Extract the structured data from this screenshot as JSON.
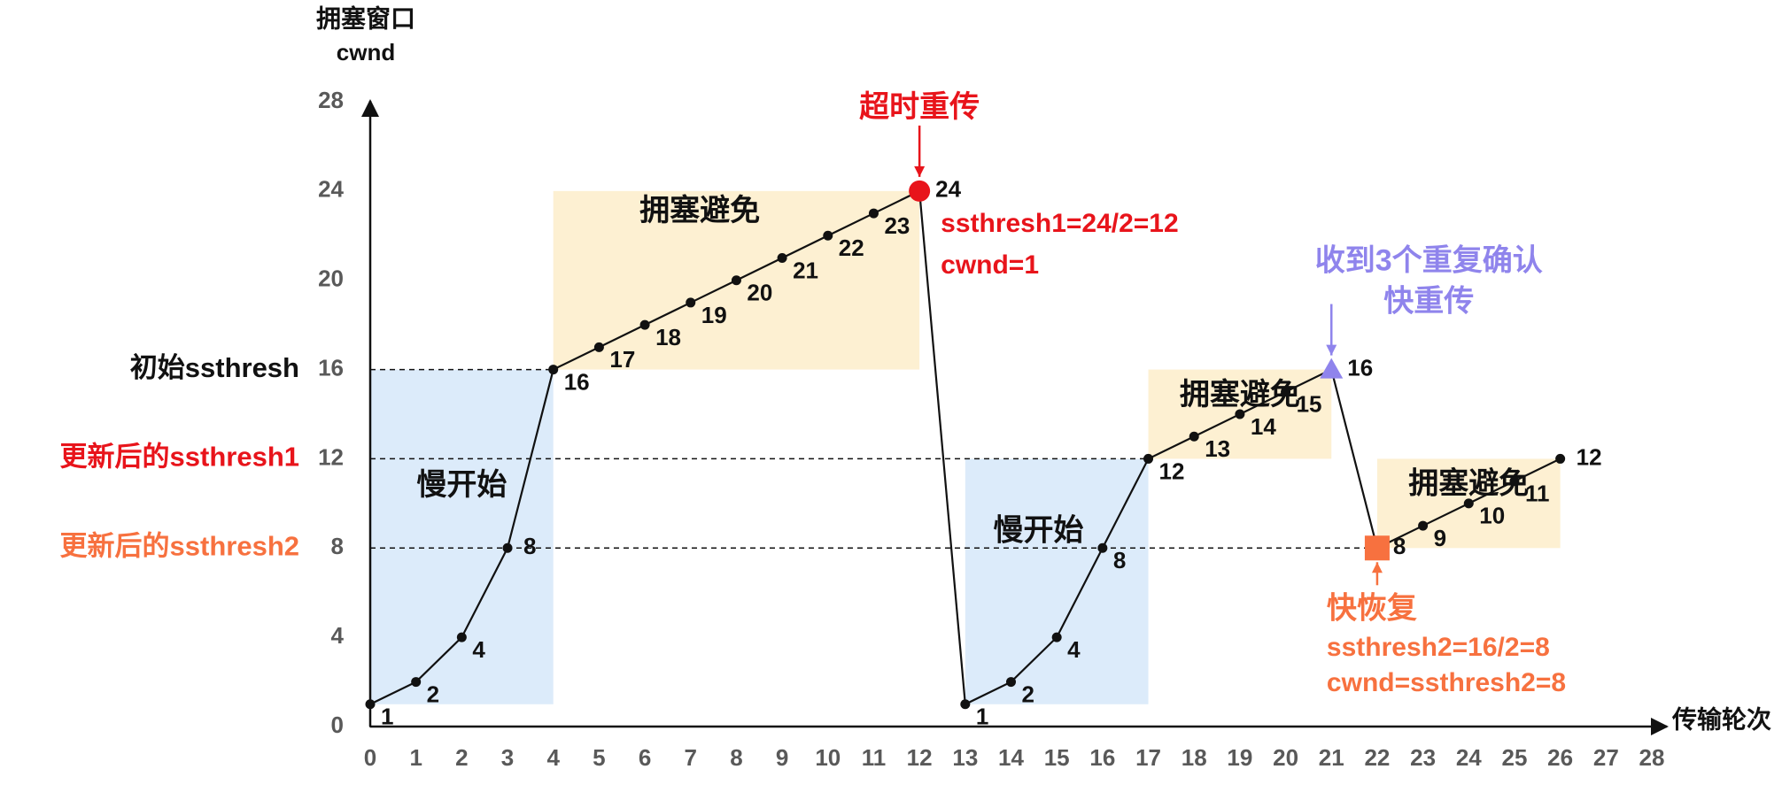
{
  "chart_data": {
    "type": "line",
    "y_label": [
      "拥塞窗口",
      "cwnd"
    ],
    "x_label": "传输轮次",
    "xlim": [
      0,
      28
    ],
    "ylim": [
      0,
      28
    ],
    "xticks": [
      0,
      1,
      2,
      3,
      4,
      5,
      6,
      7,
      8,
      9,
      10,
      11,
      12,
      13,
      14,
      15,
      16,
      17,
      18,
      19,
      20,
      21,
      22,
      23,
      24,
      25,
      26,
      27,
      28
    ],
    "yticks": [
      0,
      4,
      8,
      12,
      16,
      20,
      24,
      28
    ],
    "x": [
      0,
      1,
      2,
      3,
      4,
      5,
      6,
      7,
      8,
      9,
      10,
      11,
      12,
      13,
      14,
      15,
      16,
      17,
      18,
      19,
      20,
      21,
      22,
      23,
      24,
      25,
      26
    ],
    "series": [
      {
        "color": "#111111",
        "values": [
          1,
          2,
          4,
          8,
          16,
          17,
          18,
          19,
          20,
          21,
          22,
          23,
          24,
          1,
          2,
          4,
          8,
          12,
          13,
          14,
          15,
          16,
          8,
          9,
          10,
          11,
          12
        ]
      }
    ],
    "thresholds": [
      {
        "label": "初始ssthresh",
        "value": 16,
        "x_end": 4,
        "color": "#111111"
      },
      {
        "label": "更新后的ssthresh1",
        "value": 12,
        "x_end": 17,
        "color": "#e8141b"
      },
      {
        "label": "更新后的ssthresh2",
        "value": 8,
        "x_end": 22,
        "color": "#f7713f"
      }
    ],
    "regions": [
      {
        "label": "慢开始",
        "x": [
          0,
          4
        ],
        "y": [
          1,
          16
        ],
        "color": "#dcebfa"
      },
      {
        "label": "拥塞避免",
        "x": [
          4,
          12
        ],
        "y": [
          16,
          24
        ],
        "color": "#fdf0d2"
      },
      {
        "label": "慢开始",
        "x": [
          13,
          17
        ],
        "y": [
          1,
          12
        ],
        "color": "#dcebfa"
      },
      {
        "label": "拥塞避免",
        "x": [
          17,
          21
        ],
        "y": [
          12,
          16
        ],
        "color": "#fdf0d2"
      },
      {
        "label": "拥塞避免",
        "x": [
          22,
          26
        ],
        "y": [
          8,
          12
        ],
        "color": "#fdf0d2"
      }
    ],
    "events": [
      {
        "x": 12,
        "y": 24,
        "shape": "circle",
        "color": "#e8141b",
        "lines": [
          "超时重传"
        ],
        "notes": [
          "ssthresh1=24/2=12",
          "cwnd=1"
        ]
      },
      {
        "x": 21,
        "y": 16,
        "shape": "triangle",
        "color": "#8f84ec",
        "lines": [
          "收到3个重复确认",
          "快重传"
        ],
        "notes": []
      },
      {
        "x": 22,
        "y": 8,
        "shape": "square",
        "color": "#f7713f",
        "lines": [
          "快恢复"
        ],
        "notes": [
          "ssthresh2=16/2=8",
          "cwnd=ssthresh2=8"
        ]
      }
    ]
  }
}
